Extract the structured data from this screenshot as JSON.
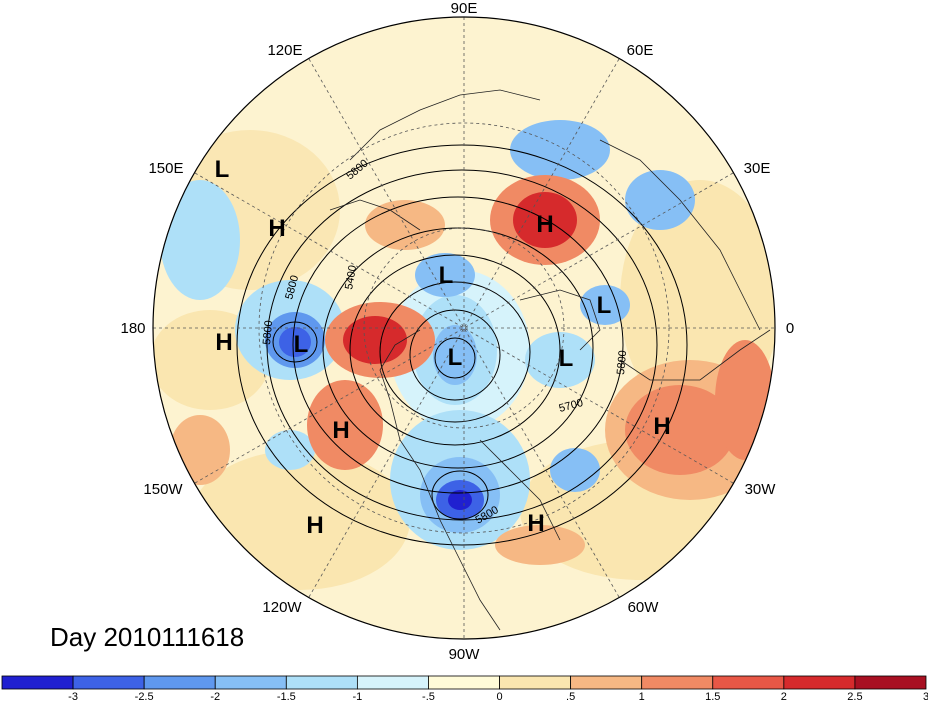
{
  "title": "Day 2010111618",
  "longitude_labels": {
    "top": "90E",
    "top_right": "60E",
    "upper_right": "30E",
    "right": "0",
    "lower_right": "30W",
    "bottom_right": "60W",
    "bottom": "90W",
    "bottom_left": "120W",
    "lower_left": "150W",
    "left": "180",
    "upper_left": "150E",
    "top_left": "120E"
  },
  "pressure_centers": [
    {
      "type": "L",
      "name": "l-150e"
    },
    {
      "type": "H",
      "name": "h-east-asia"
    },
    {
      "type": "H",
      "name": "h-europe-russia"
    },
    {
      "type": "L",
      "name": "l-siberia"
    },
    {
      "type": "L",
      "name": "l-scandinavia"
    },
    {
      "type": "H",
      "name": "h-dateline"
    },
    {
      "type": "L",
      "name": "l-aleutian"
    },
    {
      "type": "L",
      "name": "l-arctic"
    },
    {
      "type": "L",
      "name": "l-greenland"
    },
    {
      "type": "H",
      "name": "h-east-pacific"
    },
    {
      "type": "H",
      "name": "h-north-atlantic"
    },
    {
      "type": "H",
      "name": "h-subtropical-pacific"
    },
    {
      "type": "H",
      "name": "h-sargasso"
    }
  ],
  "contour_labels": [
    "5800",
    "5400",
    "5800",
    "5800",
    "5800",
    "5700",
    "5800"
  ],
  "colorbar": {
    "ticks": [
      "-3",
      "-2.5",
      "-2",
      "-1.5",
      "-1",
      "-.5",
      "0",
      ".5",
      "1",
      "1.5",
      "2",
      "2.5",
      "3"
    ],
    "colors": [
      "#2020d0",
      "#3d62e6",
      "#5f98ee",
      "#86bff5",
      "#aee0f8",
      "#d6f3fb",
      "#fffbd8",
      "#fae6b0",
      "#f6b884",
      "#f08a64",
      "#e85746",
      "#d62a2c",
      "#a81022"
    ]
  }
}
